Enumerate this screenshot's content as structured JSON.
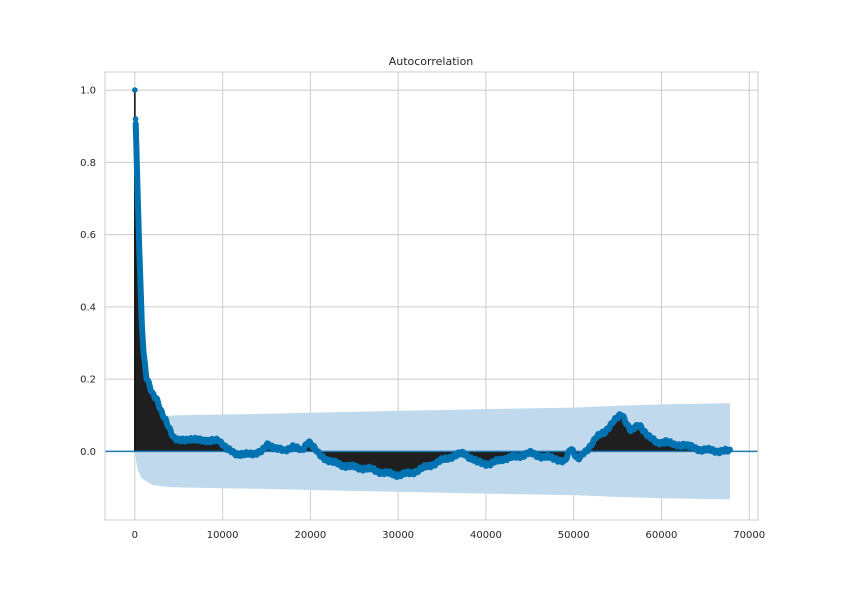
{
  "chart_data": {
    "type": "line",
    "title": "Autocorrelation",
    "xlabel": "",
    "ylabel": "",
    "xlim": [
      -3400,
      71000
    ],
    "ylim": [
      -0.19,
      1.05
    ],
    "grid": true,
    "x_ticks": [
      0,
      10000,
      20000,
      30000,
      40000,
      50000,
      60000,
      70000
    ],
    "x_tick_labels": [
      "0",
      "10000",
      "20000",
      "30000",
      "40000",
      "50000",
      "60000",
      "70000"
    ],
    "y_ticks": [
      0.0,
      0.2,
      0.4,
      0.6,
      0.8,
      1.0
    ],
    "y_tick_labels": [
      "0.0",
      "0.2",
      "0.4",
      "0.6",
      "0.8",
      "1.0"
    ],
    "confidence_band": {
      "x": [
        0,
        300,
        800,
        2000,
        4000,
        7000,
        10000,
        15000,
        20000,
        30000,
        40000,
        50000,
        55000,
        60000,
        67800
      ],
      "upper": [
        0.0,
        0.05,
        0.075,
        0.093,
        0.099,
        0.101,
        0.102,
        0.104,
        0.107,
        0.112,
        0.117,
        0.121,
        0.126,
        0.13,
        0.133
      ],
      "lower": [
        0.0,
        -0.05,
        -0.075,
        -0.093,
        -0.099,
        -0.101,
        -0.102,
        -0.104,
        -0.107,
        -0.112,
        -0.117,
        -0.121,
        -0.126,
        -0.13,
        -0.133
      ]
    },
    "series": [
      {
        "x": [
          0,
          80,
          160,
          240,
          320,
          400,
          500,
          650,
          800,
          1000,
          1300,
          1600,
          2000,
          2500,
          3000,
          3500,
          4000,
          4400,
          4800,
          5500,
          6500,
          7500,
          8500,
          9500,
          10500,
          11500,
          12500,
          13500,
          14500,
          15200,
          16000,
          17000,
          18000,
          19000,
          19800,
          21000,
          22500,
          24000,
          25500,
          27000,
          28500,
          30000,
          31500,
          33000,
          34500,
          36000,
          37500,
          39000,
          40500,
          42000,
          43500,
          45000,
          46500,
          48000,
          49000,
          49700,
          50500,
          51500,
          52500,
          53500,
          54500,
          55500,
          56500,
          57500,
          58500,
          59500,
          60500,
          61500,
          62500,
          63500,
          64500,
          65500,
          66500,
          67800
        ],
        "values": [
          1.0,
          0.92,
          0.85,
          0.78,
          0.71,
          0.64,
          0.56,
          0.45,
          0.35,
          0.27,
          0.21,
          0.19,
          0.16,
          0.14,
          0.11,
          0.09,
          0.06,
          0.035,
          0.03,
          0.035,
          0.03,
          0.035,
          0.025,
          0.035,
          0.005,
          -0.005,
          -0.01,
          -0.005,
          0.0,
          0.02,
          0.01,
          0.0,
          0.015,
          0.0,
          0.03,
          -0.01,
          -0.03,
          -0.04,
          -0.045,
          -0.05,
          -0.06,
          -0.065,
          -0.06,
          -0.045,
          -0.03,
          -0.015,
          -0.005,
          -0.03,
          -0.035,
          -0.02,
          -0.015,
          -0.005,
          -0.015,
          -0.02,
          -0.03,
          0.01,
          -0.02,
          0.0,
          0.04,
          0.05,
          0.085,
          0.1,
          0.06,
          0.07,
          0.045,
          0.02,
          0.03,
          0.015,
          0.02,
          0.01,
          0.005,
          0.003,
          0.001,
          0.0
        ]
      }
    ]
  }
}
